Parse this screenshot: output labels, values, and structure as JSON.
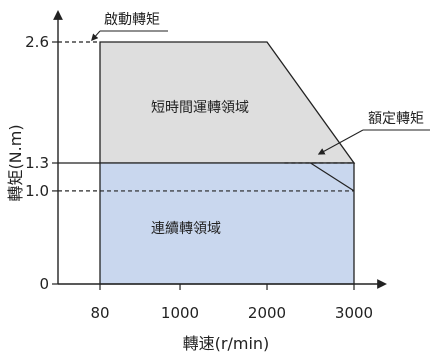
{
  "chart_data": {
    "type": "area",
    "xlabel": "轉速(r/min)",
    "ylabel": "轉矩(N.m)",
    "x_ticks": [
      {
        "value": 80,
        "label": "80"
      },
      {
        "value": 1000,
        "label": "1000"
      },
      {
        "value": 2000,
        "label": "2000"
      },
      {
        "value": 3000,
        "label": "3000"
      }
    ],
    "y_ticks": [
      {
        "value": 0,
        "label": "0"
      },
      {
        "value": 1.0,
        "label": "1.0"
      },
      {
        "value": 1.3,
        "label": "1.3"
      },
      {
        "value": 2.6,
        "label": "2.6"
      }
    ],
    "xlim": [
      0,
      3000
    ],
    "ylim": [
      0,
      2.6
    ],
    "regions": [
      {
        "name": "短時間運轉領域",
        "color": "#dedede",
        "points": [
          [
            80,
            1.3
          ],
          [
            80,
            2.6
          ],
          [
            2000,
            2.6
          ],
          [
            3000,
            1.3
          ]
        ]
      },
      {
        "name": "連續轉領域",
        "color": "#c9d7ee",
        "points": [
          [
            80,
            0
          ],
          [
            80,
            1.3
          ],
          [
            3000,
            1.3
          ],
          [
            3000,
            0
          ]
        ]
      }
    ],
    "annotations": [
      {
        "text": "啟動轉矩",
        "target": [
          80,
          2.6
        ]
      },
      {
        "text": "額定轉矩",
        "target": [
          2500,
          1.3
        ]
      }
    ],
    "guides": [
      {
        "from": [
          2200,
          1.3
        ],
        "to": [
          3000,
          1.3
        ],
        "style": "dashed"
      },
      {
        "from": [
          0,
          1.0
        ],
        "to": [
          3000,
          1.0
        ],
        "style": "dashed"
      },
      {
        "from": [
          2500,
          1.3
        ],
        "to": [
          3000,
          1.0
        ],
        "style": "solid"
      }
    ]
  }
}
